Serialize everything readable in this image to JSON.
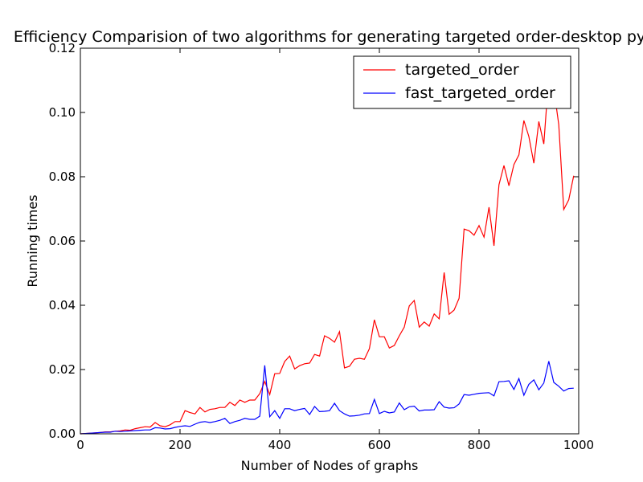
{
  "chart_data": {
    "type": "line",
    "title": "Efficiency Comparision of two algorithms for generating targeted order-desktop py",
    "xlabel": "Number of Nodes of graphs",
    "ylabel": "Running times",
    "xlim": [
      0,
      1000
    ],
    "ylim": [
      0,
      0.12
    ],
    "x_ticks": [
      "0",
      "200",
      "400",
      "600",
      "800",
      "1000"
    ],
    "y_ticks": [
      "0.00",
      "0.02",
      "0.04",
      "0.06",
      "0.08",
      "0.10",
      "0.12"
    ],
    "grid": false,
    "legend_position": "top-right",
    "x": [
      10,
      20,
      30,
      40,
      50,
      60,
      70,
      80,
      90,
      100,
      110,
      120,
      130,
      140,
      150,
      160,
      170,
      180,
      190,
      200,
      210,
      220,
      230,
      240,
      250,
      260,
      270,
      280,
      290,
      300,
      310,
      320,
      330,
      340,
      350,
      360,
      370,
      380,
      390,
      400,
      410,
      420,
      430,
      440,
      450,
      460,
      470,
      480,
      490,
      500,
      510,
      520,
      530,
      540,
      550,
      560,
      570,
      580,
      590,
      600,
      610,
      620,
      630,
      640,
      650,
      660,
      670,
      680,
      690,
      700,
      710,
      720,
      730,
      740,
      750,
      760,
      770,
      780,
      790,
      800,
      810,
      820,
      830,
      840,
      850,
      860,
      870,
      880,
      890,
      900,
      910,
      920,
      930,
      940,
      950,
      960,
      970,
      980,
      990
    ],
    "series": [
      {
        "name": "targeted_order",
        "color": "#ff0000",
        "values": [
          0.0001,
          0.0002,
          0.0003,
          0.0004,
          0.0006,
          0.0006,
          0.0008,
          0.0009,
          0.0012,
          0.0011,
          0.0016,
          0.0019,
          0.0022,
          0.0021,
          0.0035,
          0.0025,
          0.0022,
          0.0028,
          0.0038,
          0.0038,
          0.0072,
          0.0066,
          0.0062,
          0.0082,
          0.0068,
          0.0076,
          0.0078,
          0.0082,
          0.0082,
          0.0098,
          0.0088,
          0.0105,
          0.0098,
          0.0105,
          0.0105,
          0.0125,
          0.0163,
          0.0122,
          0.0187,
          0.0188,
          0.0225,
          0.0242,
          0.0202,
          0.0212,
          0.0218,
          0.022,
          0.0247,
          0.0242,
          0.0305,
          0.0297,
          0.0285,
          0.0318,
          0.0205,
          0.021,
          0.0232,
          0.0235,
          0.0232,
          0.0265,
          0.0355,
          0.0302,
          0.0302,
          0.0267,
          0.0275,
          0.0305,
          0.0332,
          0.0398,
          0.0415,
          0.0332,
          0.0348,
          0.0335,
          0.0373,
          0.0358,
          0.0502,
          0.0372,
          0.0385,
          0.0422,
          0.0637,
          0.0632,
          0.0618,
          0.0648,
          0.0612,
          0.0705,
          0.0585,
          0.0775,
          0.0835,
          0.0772,
          0.0838,
          0.0868,
          0.0975,
          0.0925,
          0.0842,
          0.0972,
          0.0902,
          0.1115,
          0.1075,
          0.0962,
          0.0698,
          0.0728,
          0.0803
        ]
      },
      {
        "name": "fast_targeted_order",
        "color": "#0000ff",
        "values": [
          0.0001,
          0.0002,
          0.0003,
          0.0004,
          0.0005,
          0.0005,
          0.0008,
          0.0007,
          0.0008,
          0.0009,
          0.001,
          0.0011,
          0.0012,
          0.0012,
          0.0019,
          0.0018,
          0.0015,
          0.0016,
          0.002,
          0.0023,
          0.0025,
          0.0023,
          0.003,
          0.0036,
          0.0038,
          0.0035,
          0.0038,
          0.0042,
          0.0048,
          0.0032,
          0.0038,
          0.0042,
          0.0048,
          0.0045,
          0.0045,
          0.0055,
          0.0213,
          0.0053,
          0.0072,
          0.0048,
          0.0078,
          0.0078,
          0.0072,
          0.0076,
          0.0079,
          0.006,
          0.0085,
          0.0069,
          0.007,
          0.0072,
          0.0095,
          0.0072,
          0.0062,
          0.0055,
          0.0056,
          0.0058,
          0.0062,
          0.0063,
          0.0107,
          0.0063,
          0.007,
          0.0065,
          0.0068,
          0.0096,
          0.0075,
          0.0084,
          0.0086,
          0.0071,
          0.0074,
          0.0074,
          0.0075,
          0.01,
          0.0083,
          0.008,
          0.0081,
          0.0093,
          0.0122,
          0.012,
          0.0123,
          0.0126,
          0.0127,
          0.0128,
          0.0118,
          0.0162,
          0.0163,
          0.0165,
          0.0138,
          0.0172,
          0.012,
          0.0154,
          0.0168,
          0.0137,
          0.0158,
          0.0226,
          0.016,
          0.0148,
          0.0133,
          0.0141,
          0.0142
        ]
      }
    ]
  }
}
